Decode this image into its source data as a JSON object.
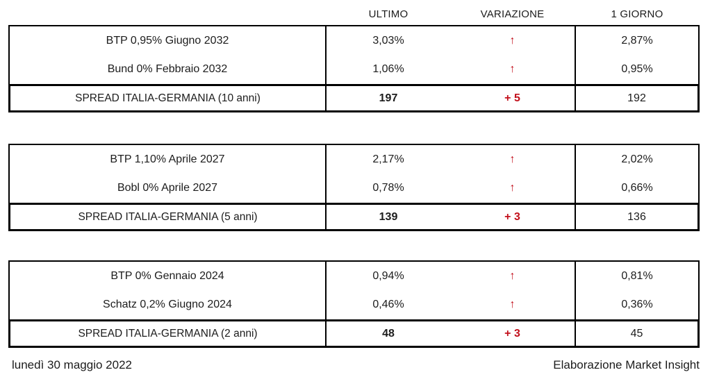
{
  "colors": {
    "accent_red": "#c20e1a",
    "text": "#1c1c1c",
    "border": "#000000"
  },
  "columns": {
    "ultimo": "ULTIMO",
    "variazione": "VARIAZIONE",
    "giorno": "1 GIORNO"
  },
  "icons": {
    "up_arrow": "↑"
  },
  "blocks": [
    {
      "rows": [
        {
          "label": "BTP 0,95% Giugno 2032",
          "ultimo": "3,03%",
          "giorno": "2,87%"
        },
        {
          "label": "Bund 0% Febbraio 2032",
          "ultimo": "1,06%",
          "giorno": "0,95%"
        }
      ],
      "spread": {
        "label": "SPREAD ITALIA-GERMANIA (10 anni)",
        "ultimo": "197",
        "variazione": "+ 5",
        "giorno": "192"
      }
    },
    {
      "rows": [
        {
          "label": "BTP 1,10% Aprile 2027",
          "ultimo": "2,17%",
          "giorno": "2,02%"
        },
        {
          "label": "Bobl 0% Aprile 2027",
          "ultimo": "0,78%",
          "giorno": "0,66%"
        }
      ],
      "spread": {
        "label": "SPREAD ITALIA-GERMANIA (5 anni)",
        "ultimo": "139",
        "variazione": "+ 3",
        "giorno": "136"
      }
    },
    {
      "rows": [
        {
          "label": "BTP 0% Gennaio 2024",
          "ultimo": "0,94%",
          "giorno": "0,81%"
        },
        {
          "label": "Schatz 0,2% Giugno 2024",
          "ultimo": "0,46%",
          "giorno": "0,36%"
        }
      ],
      "spread": {
        "label": "SPREAD ITALIA-GERMANIA (2 anni)",
        "ultimo": "48",
        "variazione": "+ 3",
        "giorno": "45"
      }
    }
  ],
  "footer": {
    "date": "lunedì 30 maggio 2022",
    "credit": "Elaborazione Market Insight"
  }
}
